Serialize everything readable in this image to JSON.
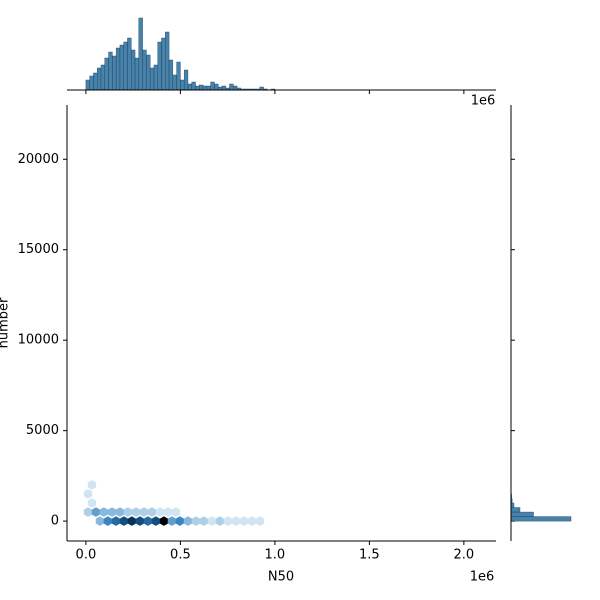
{
  "chart_data": [
    {
      "type": "hexbin",
      "xlabel": "N50",
      "ylabel": "number",
      "x_offset_text": "1e6",
      "x": [
        74000,
        116000,
        159000,
        201000,
        243000,
        286000,
        328000,
        370000,
        413000,
        455000,
        497000,
        540000,
        582000,
        624000,
        667000,
        709000,
        751000,
        794000,
        836000,
        878000,
        921000,
        11000,
        53000,
        95000,
        138000,
        180000,
        222000,
        265000,
        307000,
        349000,
        392000,
        434000,
        476000,
        32000,
        11000,
        32000
      ],
      "y": [
        0,
        0,
        0,
        0,
        0,
        0,
        0,
        0,
        0,
        0,
        0,
        0,
        0,
        0,
        0,
        0,
        0,
        0,
        0,
        0,
        0,
        500,
        500,
        500,
        500,
        500,
        500,
        500,
        500,
        500,
        500,
        500,
        500,
        1000,
        1500,
        2000
      ],
      "counts": [
        3,
        5,
        6,
        7,
        8,
        7,
        6,
        7,
        10,
        4,
        5,
        3,
        2,
        2,
        1,
        2,
        1,
        1,
        1,
        1,
        1,
        2,
        4,
        3,
        3,
        3,
        2,
        2,
        2,
        2,
        1,
        1,
        1,
        1,
        1,
        1
      ],
      "cmap": [
        "#f4f8fc",
        "#9cc5e3",
        "#3a86c0",
        "#0b3f70",
        "#000000"
      ],
      "xlim": [
        -100000,
        2170000
      ],
      "xticks": [
        {
          "value": 0,
          "label": "0.0"
        },
        {
          "value": 500000,
          "label": "0.5"
        },
        {
          "value": 1000000,
          "label": "1.0"
        },
        {
          "value": 1500000,
          "label": "1.5"
        },
        {
          "value": 2000000,
          "label": "2.0"
        }
      ],
      "ylim": [
        -1100,
        23000
      ],
      "yticks": [
        0,
        5000,
        10000,
        15000,
        20000
      ]
    },
    {
      "type": "histogram",
      "x_offset_text": "1e6",
      "color": "#3274a1",
      "bins": [
        0,
        20000,
        40000,
        60000,
        80000,
        100000,
        120000,
        140000,
        160000,
        180000,
        200000,
        220000,
        240000,
        260000,
        280000,
        300000,
        320000,
        340000,
        360000,
        380000,
        400000,
        420000,
        440000,
        460000,
        480000,
        500000,
        520000,
        540000,
        560000,
        580000,
        600000,
        620000,
        640000,
        660000,
        680000,
        700000,
        720000,
        740000,
        760000,
        780000,
        800000,
        820000,
        840000,
        860000,
        880000,
        900000,
        920000,
        940000,
        960000,
        980000,
        1000000
      ],
      "counts": [
        10,
        14,
        17,
        22,
        25,
        32,
        38,
        34,
        42,
        45,
        48,
        52,
        40,
        32,
        72,
        40,
        35,
        22,
        25,
        48,
        52,
        58,
        30,
        15,
        28,
        10,
        20,
        6,
        8,
        4,
        5,
        4,
        4,
        8,
        6,
        3,
        4,
        2,
        6,
        4,
        2,
        1,
        1,
        1,
        1,
        1,
        3,
        1,
        0,
        1
      ],
      "ylim": [
        0,
        75
      ]
    },
    {
      "type": "histogram_h",
      "color": "#3274a1",
      "bins": [
        0,
        250,
        500,
        750,
        1000,
        1250,
        1500,
        1750,
        2000
      ],
      "counts": [
        800,
        300,
        120,
        40,
        15,
        8,
        4,
        2
      ],
      "xlim": [
        0,
        800
      ]
    }
  ]
}
